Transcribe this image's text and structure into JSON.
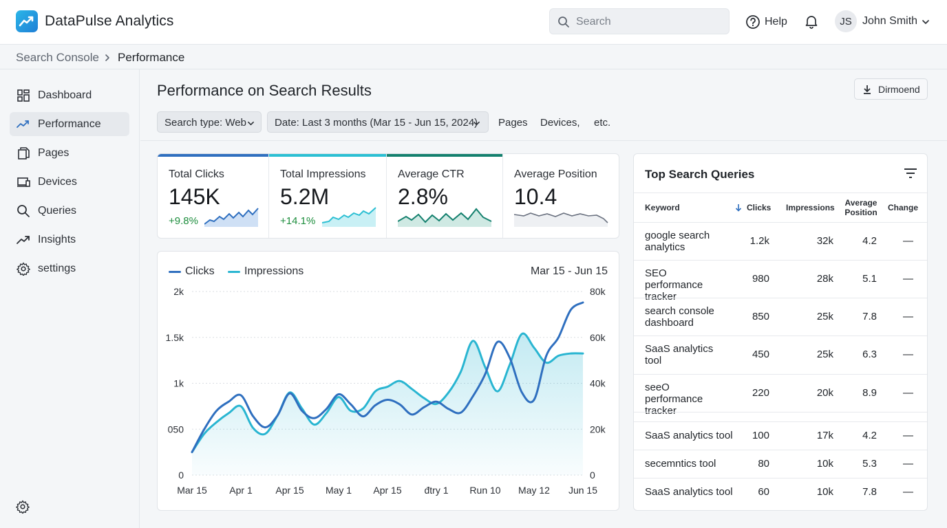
{
  "app": {
    "title": "DataPulse Analytics"
  },
  "topbar": {
    "search_placeholder": "Search",
    "help_label": "Help",
    "user_initials": "JS",
    "user_name": "John Smith"
  },
  "breadcrumb": {
    "items": [
      "Search Console",
      "Performance"
    ]
  },
  "sidebar": {
    "items": [
      {
        "label": "Dashboard",
        "icon": "dashboard-grid-icon"
      },
      {
        "label": "Performance",
        "icon": "trend-line-icon",
        "active": true
      },
      {
        "label": "Pages",
        "icon": "pages-icon"
      },
      {
        "label": "Devices",
        "icon": "devices-icon"
      },
      {
        "label": "Queries",
        "icon": "search-icon"
      },
      {
        "label": "Insights",
        "icon": "insights-trend-icon"
      },
      {
        "label": "settings",
        "icon": "gear-icon"
      }
    ]
  },
  "main": {
    "page_title": "Performance on Search Results",
    "download_label": "Dirmoend",
    "filters": {
      "search_type": "Search type: Web",
      "date": "Date: Last 3 months (Mar 15 - Jun 15, 2024)",
      "links": [
        "Pages",
        "Devices,",
        "etc."
      ]
    }
  },
  "metrics": [
    {
      "label": "Total Clicks",
      "value": "145K",
      "delta": "+9.8%",
      "color": "#2f6fbf"
    },
    {
      "label": "Total Impressions",
      "value": "5.2M",
      "delta": "+14.1%",
      "color": "#2bbfd3"
    },
    {
      "label": "Average CTR",
      "value": "2.8%",
      "delta": "",
      "color": "#14806e"
    },
    {
      "label": "Average Position",
      "value": "10.4",
      "delta": "",
      "color": "#ffffff"
    }
  ],
  "chart": {
    "legend": [
      "Clicks",
      "Impressions"
    ],
    "range_label": "Mar 15 - Jun 15",
    "colors": {
      "clicks": "#2f6fbf",
      "impressions": "#29b5d1"
    }
  },
  "chart_data": {
    "type": "line",
    "x_ticks": [
      "Mar 15",
      "Apr 1",
      "Apr 15",
      "May 1",
      "Apr 15",
      "đtry 1",
      "Run 10",
      "May 12",
      "Jun 15"
    ],
    "y_left_ticks": [
      "0",
      "050",
      "1k",
      "1.5k",
      "2k"
    ],
    "y_right_ticks": [
      "0",
      "20k",
      "40k",
      "60k",
      "80k"
    ],
    "ylim_left": [
      0,
      2000
    ],
    "ylim_right": [
      0,
      80000
    ],
    "x_index": [
      0,
      0.25,
      0.5,
      0.75,
      1,
      1.25,
      1.5,
      1.75,
      2,
      2.25,
      2.5,
      2.75,
      3,
      3.25,
      3.5,
      3.75,
      4,
      4.25,
      4.5,
      4.75,
      5,
      5.25,
      5.5,
      5.75,
      6,
      6.25,
      6.5,
      6.75,
      7,
      7.25,
      7.5,
      7.75,
      8
    ],
    "series": [
      {
        "name": "Clicks",
        "axis": "left",
        "values": [
          250,
          500,
          700,
          800,
          870,
          640,
          520,
          650,
          890,
          700,
          620,
          720,
          880,
          770,
          640,
          760,
          820,
          770,
          660,
          740,
          800,
          720,
          680,
          860,
          1100,
          1450,
          1280,
          900,
          820,
          1300,
          1500,
          1800,
          1880
        ]
      },
      {
        "name": "Impressions",
        "axis": "right",
        "values": [
          10000,
          18000,
          23000,
          27000,
          30000,
          20500,
          18000,
          26000,
          36000,
          29000,
          22000,
          27000,
          34000,
          28000,
          29000,
          36500,
          38500,
          41000,
          37500,
          33500,
          31000,
          36000,
          45000,
          58500,
          47000,
          36500,
          48000,
          61500,
          55500,
          49000,
          52000,
          53000,
          53000
        ]
      }
    ],
    "grid": true,
    "legend_position": "top-left"
  },
  "table": {
    "title": "Top Search Queries",
    "columns": [
      "Keyword",
      "Clicks",
      "Impressions",
      "Average Position",
      "Change"
    ],
    "rows": [
      {
        "keyword": "google search analytics",
        "clicks": "1.2k",
        "impressions": "32k",
        "position": "4.2",
        "change": "—"
      },
      {
        "keyword": "SEO performance tracker",
        "clicks": "980",
        "impressions": "28k",
        "position": "5.1",
        "change": "—"
      },
      {
        "keyword": "search console dashboard",
        "clicks": "850",
        "impressions": "25k",
        "position": "7.8",
        "change": "—"
      },
      {
        "keyword": "SaaS analytics tool",
        "clicks": "450",
        "impressions": "25k",
        "position": "6.3",
        "change": "—"
      },
      {
        "keyword": "seeO performance tracker",
        "clicks": "220",
        "impressions": "20k",
        "position": "8.9",
        "change": "—"
      },
      {
        "keyword": "SaaS analytics tool",
        "clicks": "100",
        "impressions": "17k",
        "position": "4.2",
        "change": "—"
      },
      {
        "keyword": "secemntics tool",
        "clicks": "80",
        "impressions": "10k",
        "position": "5.3",
        "change": "—"
      },
      {
        "keyword": "SaaS analytics tool",
        "clicks": "60",
        "impressions": "10k",
        "position": "7.8",
        "change": "—"
      }
    ]
  }
}
